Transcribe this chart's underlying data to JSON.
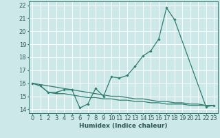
{
  "title": "",
  "xlabel": "Humidex (Indice chaleur)",
  "x_hours": [
    0,
    1,
    2,
    3,
    4,
    5,
    6,
    7,
    8,
    9,
    10,
    11,
    12,
    13,
    14,
    15,
    16,
    17,
    18,
    19,
    20,
    21,
    22,
    23
  ],
  "line1": [
    16.0,
    15.8,
    15.3,
    15.3,
    15.5,
    15.5,
    14.1,
    14.4,
    15.6,
    15.0,
    16.5,
    16.4,
    16.6,
    17.3,
    18.1,
    18.5,
    19.4,
    21.8,
    20.9,
    null,
    null,
    null,
    14.2,
    14.3
  ],
  "line2": [
    16.0,
    15.8,
    15.3,
    15.2,
    15.2,
    15.1,
    15.0,
    14.9,
    14.9,
    14.8,
    14.8,
    14.7,
    14.7,
    14.6,
    14.6,
    14.5,
    14.5,
    14.4,
    14.4,
    14.4,
    14.3,
    14.3,
    14.3,
    14.3
  ],
  "line3": [
    16.0,
    15.9,
    15.8,
    15.7,
    15.6,
    15.5,
    15.4,
    15.3,
    15.2,
    15.1,
    15.0,
    15.0,
    14.9,
    14.8,
    14.8,
    14.7,
    14.6,
    14.6,
    14.5,
    14.5,
    14.4,
    14.4,
    14.3,
    14.3
  ],
  "ylim": [
    13.7,
    22.3
  ],
  "yticks": [
    14,
    15,
    16,
    17,
    18,
    19,
    20,
    21,
    22
  ],
  "bg_color": "#cde8e8",
  "grid_color": "#ffffff",
  "line_color": "#2e7d6e",
  "label_color": "#2e5a5a",
  "tick_color": "#2e5a5a",
  "label_fontsize": 6.5,
  "tick_fontsize": 6.0
}
